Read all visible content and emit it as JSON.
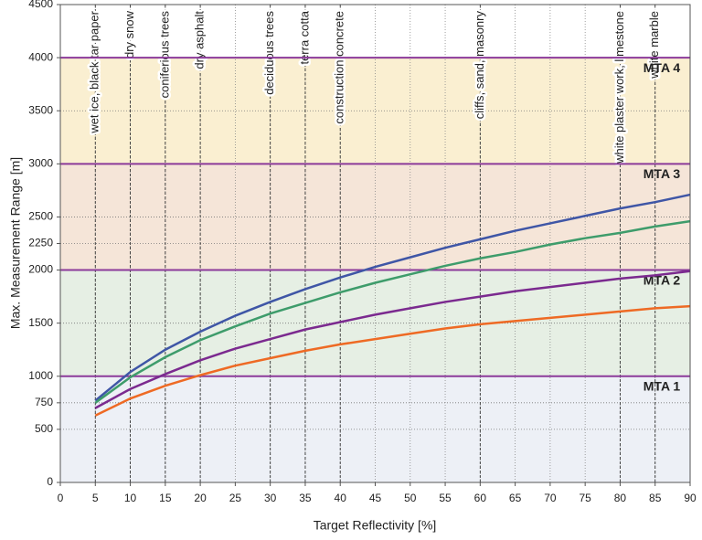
{
  "chart_data": {
    "type": "line",
    "xlabel": "Target Reflectivity [%]",
    "ylabel": "Max. Measurement Range [m]",
    "x": [
      5,
      10,
      15,
      20,
      25,
      30,
      35,
      40,
      45,
      50,
      55,
      60,
      65,
      70,
      75,
      80,
      85,
      90
    ],
    "series": [
      {
        "color": "#3f56a6",
        "values": [
          770,
          1040,
          1250,
          1420,
          1570,
          1700,
          1820,
          1930,
          2030,
          2120,
          2210,
          2290,
          2370,
          2440,
          2510,
          2580,
          2640,
          2710
        ]
      },
      {
        "color": "#3e9c6b",
        "values": [
          750,
          990,
          1180,
          1340,
          1470,
          1590,
          1690,
          1790,
          1880,
          1960,
          2040,
          2110,
          2170,
          2240,
          2300,
          2350,
          2410,
          2460
        ]
      },
      {
        "color": "#7b2a8f",
        "values": [
          700,
          880,
          1020,
          1150,
          1260,
          1350,
          1440,
          1510,
          1580,
          1640,
          1700,
          1750,
          1800,
          1840,
          1880,
          1920,
          1950,
          1990
        ]
      },
      {
        "color": "#ee6a24",
        "values": [
          630,
          790,
          910,
          1010,
          1100,
          1170,
          1240,
          1300,
          1350,
          1400,
          1450,
          1490,
          1520,
          1550,
          1580,
          1610,
          1640,
          1660
        ]
      }
    ],
    "bands": [
      {
        "label": "MTA 1",
        "from": 0,
        "to": 1000,
        "color": "#edf0f6"
      },
      {
        "label": "MTA 2",
        "from": 1000,
        "to": 2000,
        "color": "#e6efe4"
      },
      {
        "label": "MTA 3",
        "from": 2000,
        "to": 3000,
        "color": "#f5e5d8"
      },
      {
        "label": "MTA 4",
        "from": 3000,
        "to": 4000,
        "color": "#faefd1"
      }
    ],
    "band_line_color": "#8b3a9a",
    "annotations": [
      {
        "x": 5,
        "label": "wet  ice, black tar paper"
      },
      {
        "x": 10,
        "label": "dry snow"
      },
      {
        "x": 15,
        "label": "coniferious trees"
      },
      {
        "x": 20,
        "label": "dry asphalt"
      },
      {
        "x": 30,
        "label": "deciduous trees"
      },
      {
        "x": 35,
        "label": "terra cotta"
      },
      {
        "x": 40,
        "label": "construction concrete"
      },
      {
        "x": 60,
        "label": "cliffs, sand, masonry"
      },
      {
        "x": 80,
        "label": "white plaster work, limestone"
      },
      {
        "x": 85,
        "label": "white marble"
      }
    ],
    "xlim": [
      0,
      90
    ],
    "xticks": [
      0,
      5,
      10,
      15,
      20,
      25,
      30,
      35,
      40,
      45,
      50,
      55,
      60,
      65,
      70,
      75,
      80,
      85,
      90
    ],
    "ylim": [
      0,
      4500
    ],
    "yticks": [
      0,
      500,
      750,
      1000,
      1500,
      2000,
      2250,
      2500,
      3000,
      3500,
      4000,
      4500
    ],
    "grid": true
  }
}
